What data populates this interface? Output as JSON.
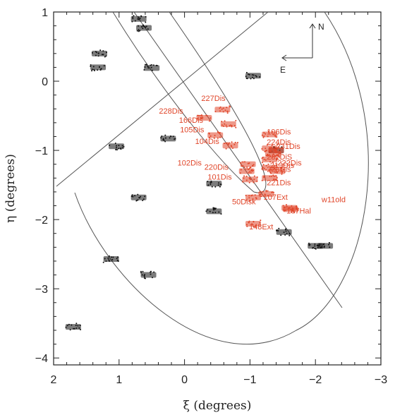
{
  "chart_data": {
    "type": "scatter",
    "title": "",
    "xlabel": "ξ (degrees)",
    "ylabel": "η (degrees)",
    "xlim": [
      2,
      -3
    ],
    "ylim": [
      -4.1,
      1.0
    ],
    "x_ticks": [
      2,
      1,
      0,
      -1,
      -2,
      -3
    ],
    "y_ticks": [
      1,
      0,
      -1,
      -2,
      -3,
      -4
    ],
    "x_tick_labels": [
      "2",
      "1",
      "0",
      "−1",
      "−2",
      "−3"
    ],
    "y_tick_labels": [
      "1",
      "0",
      "−1",
      "−2",
      "−3",
      "−4"
    ],
    "colors": {
      "highlight": "#e0462a",
      "default": "#111111",
      "curves": "#555555"
    },
    "compass": {
      "north": "N",
      "east": "E"
    },
    "labeled_fields": [
      {
        "label": "227Dis",
        "x": -0.58,
        "y": -0.41
      },
      {
        "label": "228Dis",
        "x": -0.3,
        "y": -0.53
      },
      {
        "label": "166Dis",
        "x": -0.67,
        "y": -0.62
      },
      {
        "label": "105Dis",
        "x": -0.47,
        "y": -0.78
      },
      {
        "label": "104Dis",
        "x": -0.7,
        "y": -0.93
      },
      {
        "label": "102Dis",
        "x": -0.97,
        "y": -1.2
      },
      {
        "label": "220Dis",
        "x": -0.95,
        "y": -1.3
      },
      {
        "label": "101Dis",
        "x": -1.0,
        "y": -1.42
      },
      {
        "label": "50Disk",
        "x": -1.05,
        "y": -1.68
      },
      {
        "label": "148Ext",
        "x": -1.05,
        "y": -2.06
      },
      {
        "label": "106Dis",
        "x": -1.3,
        "y": -0.77
      },
      {
        "label": "224Dis",
        "x": -1.3,
        "y": -0.97
      },
      {
        "label": "232DiS",
        "x": -1.3,
        "y": -1.13
      },
      {
        "label": "213Dis",
        "x": -1.35,
        "y": -1.05
      },
      {
        "label": "223Dis",
        "x": -1.3,
        "y": -1.25
      },
      {
        "label": "221Dis",
        "x": -1.3,
        "y": -1.4
      },
      {
        "label": "107Ext",
        "x": -1.25,
        "y": -1.63
      },
      {
        "label": "167Hal",
        "x": -1.6,
        "y": -1.83
      },
      {
        "label": "231Dis",
        "x": -1.4,
        "y": -1.0
      },
      {
        "label": "222Dis",
        "x": -1.42,
        "y": -1.3
      },
      {
        "label": "w11old",
        "x": -1.62,
        "y": -1.85
      }
    ],
    "other_fields": [
      {
        "x": 0.7,
        "y": 0.9
      },
      {
        "x": 0.62,
        "y": 0.77
      },
      {
        "x": 1.3,
        "y": 0.4
      },
      {
        "x": 1.32,
        "y": 0.2
      },
      {
        "x": 0.5,
        "y": 0.19
      },
      {
        "x": -1.05,
        "y": 0.08
      },
      {
        "x": 1.04,
        "y": -0.94
      },
      {
        "x": 0.25,
        "y": -0.83
      },
      {
        "x": -1.4,
        "y": -1.0
      },
      {
        "x": -0.45,
        "y": -1.48
      },
      {
        "x": 0.7,
        "y": -1.68
      },
      {
        "x": -0.45,
        "y": -1.88
      },
      {
        "x": -1.52,
        "y": -2.18
      },
      {
        "x": -2.0,
        "y": -2.38
      },
      {
        "x": -2.15,
        "y": -2.38
      },
      {
        "x": 1.12,
        "y": -2.57
      },
      {
        "x": 0.55,
        "y": -2.8
      },
      {
        "x": 1.7,
        "y": -3.55
      }
    ],
    "grid": false,
    "legend": "none"
  }
}
